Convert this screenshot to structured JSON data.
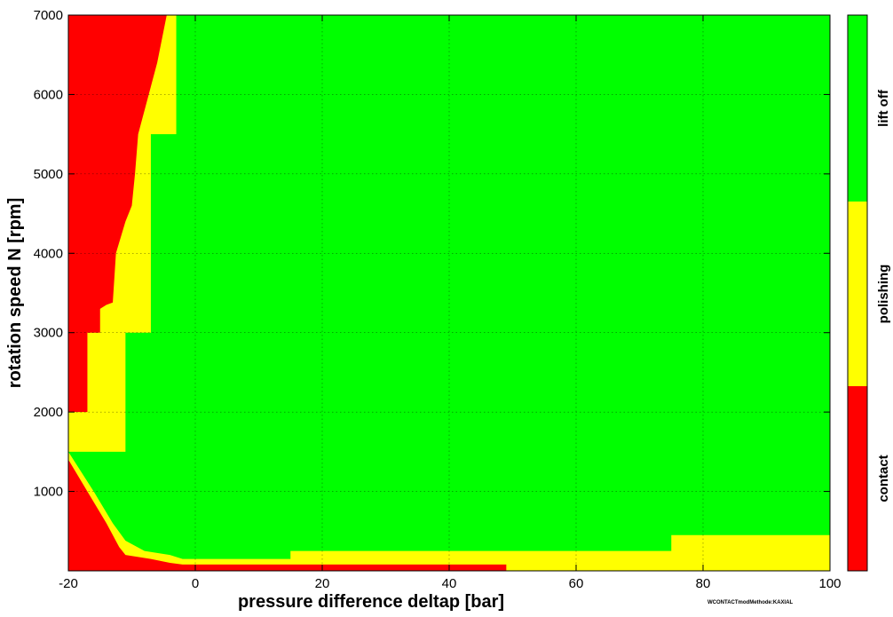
{
  "chart_data": {
    "type": "heatmap",
    "title": "",
    "xlabel": "pressure difference deltap [bar]",
    "ylabel": "rotation speed N [rpm]",
    "xlim": [
      -20,
      100
    ],
    "ylim": [
      0,
      7000
    ],
    "x_ticks": [
      "-20",
      "0",
      "20",
      "40",
      "60",
      "80",
      "100"
    ],
    "y_ticks": [
      "1000",
      "2000",
      "3000",
      "4000",
      "5000",
      "6000",
      "7000"
    ],
    "grid": true,
    "annotation": "WCONTACTmodMethode:KAXIAL",
    "colors": {
      "contact": "#ff0000",
      "polishing": "#ffff00",
      "lift_off": "#00ff00"
    },
    "colorbar": {
      "placement": "right",
      "categories": [
        "contact",
        "polishing",
        "lift off"
      ]
    },
    "regions": {
      "contact_boundary": [
        [
          -20,
          2000
        ],
        [
          -17,
          2000
        ],
        [
          -17,
          3000
        ],
        [
          -15,
          3000
        ],
        [
          -15,
          3300
        ],
        [
          -14,
          3350
        ],
        [
          -13,
          3380
        ],
        [
          -12.5,
          4000
        ],
        [
          -11,
          4400
        ],
        [
          -10,
          4600
        ],
        [
          -9.5,
          5000
        ],
        [
          -9,
          5500
        ],
        [
          -8,
          5800
        ],
        [
          -7,
          6100
        ],
        [
          -6,
          6400
        ],
        [
          -5,
          6800
        ],
        [
          -4.5,
          7000
        ]
      ],
      "lift_off_boundary": [
        [
          -20,
          1500
        ],
        [
          -11,
          1500
        ],
        [
          -11,
          3000
        ],
        [
          -7,
          3000
        ],
        [
          -7,
          5500
        ],
        [
          -3,
          5500
        ],
        [
          -3,
          7000
        ]
      ],
      "bottom_lift_off_boundary": [
        [
          -20,
          1500
        ],
        [
          -16,
          1000
        ],
        [
          -13,
          600
        ],
        [
          -11,
          380
        ],
        [
          -8,
          250
        ],
        [
          -4,
          200
        ],
        [
          -2,
          150
        ],
        [
          15,
          150
        ],
        [
          15,
          250
        ],
        [
          75,
          250
        ],
        [
          75,
          450
        ],
        [
          100,
          450
        ]
      ],
      "bottom_contact_boundary": [
        [
          -20,
          1400
        ],
        [
          -17,
          1000
        ],
        [
          -14,
          600
        ],
        [
          -12,
          300
        ],
        [
          -11,
          200
        ],
        [
          -7,
          150
        ],
        [
          -4,
          100
        ],
        [
          -2,
          80
        ],
        [
          49,
          80
        ],
        [
          49,
          0
        ]
      ]
    }
  }
}
